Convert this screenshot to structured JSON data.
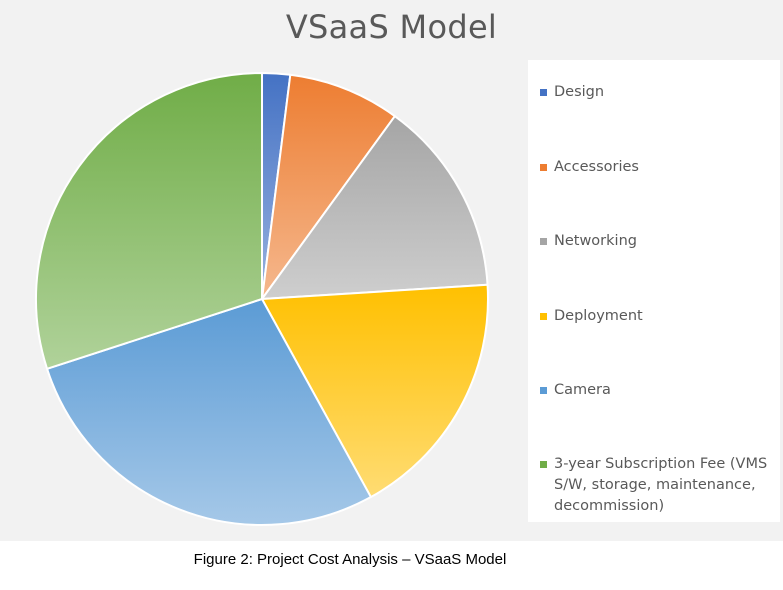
{
  "chart_data": {
    "type": "pie",
    "title": "VSaaS Model",
    "categories": [
      "Design",
      "Accessories",
      "Networking",
      "Deployment",
      "Camera",
      "3-year Subscription Fee (VMS S/W, storage, maintenance, decommission)"
    ],
    "values": [
      2,
      8,
      14,
      18,
      28,
      30
    ],
    "colors": [
      "#4472c4",
      "#ed7d31",
      "#a5a5a5",
      "#ffc000",
      "#5b9bd5",
      "#70ad47"
    ],
    "legend_position": "right"
  },
  "caption": "Figure 2: Project Cost Analysis – VSaaS Model"
}
